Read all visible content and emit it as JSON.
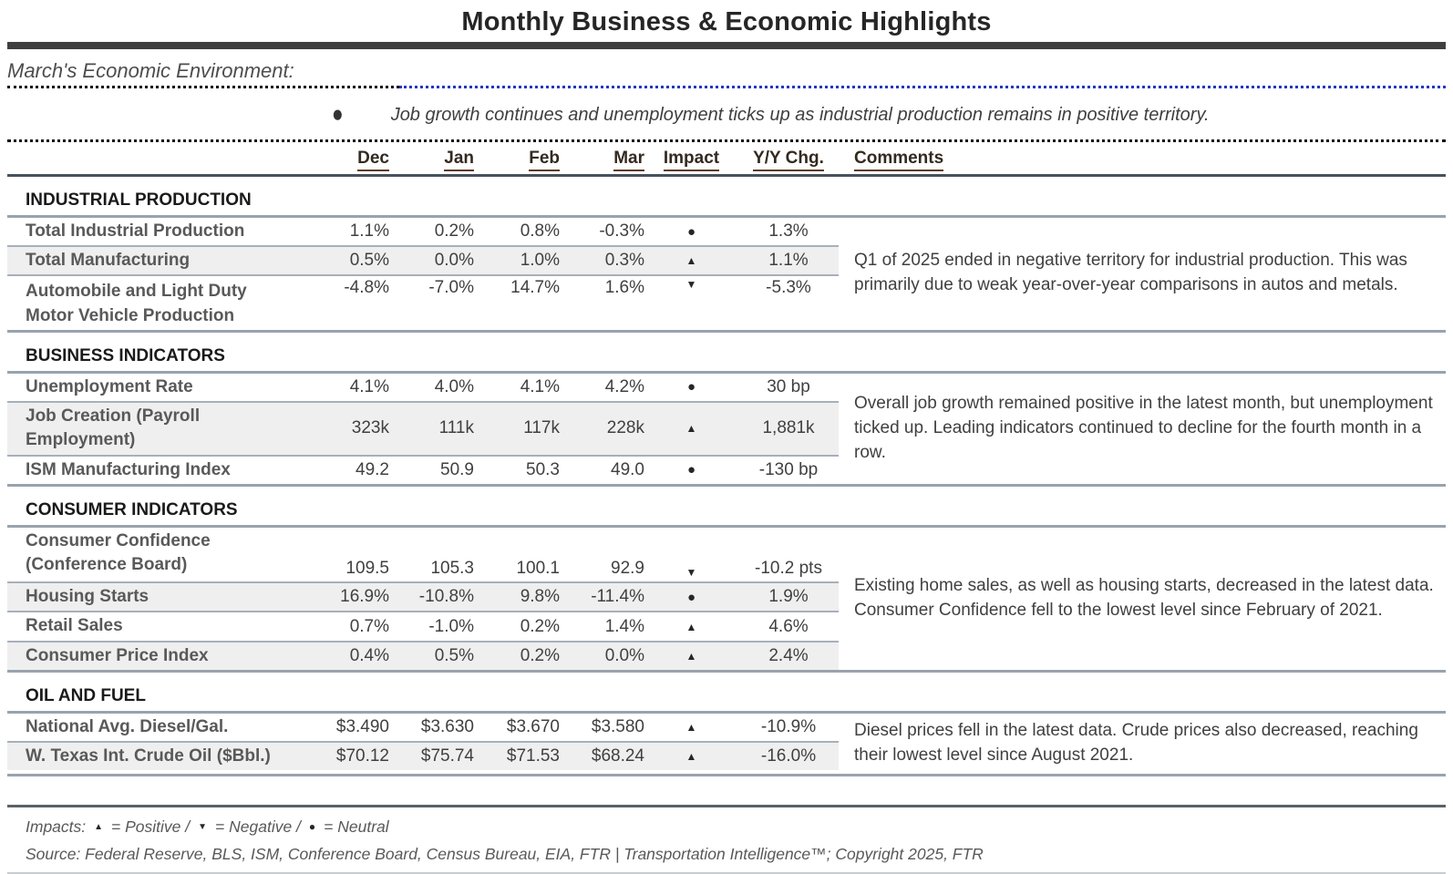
{
  "title": "Monthly Business & Economic Highlights",
  "intro": {
    "heading": "March's Economic Environment:",
    "bullet_symbol": "●",
    "bullet_text": "Job growth continues and unemployment ticks up as industrial production remains in positive territory."
  },
  "impact_symbols": {
    "positive": "▲",
    "negative": "▼",
    "neutral": "●"
  },
  "colors": {
    "title_rule": "#3f3f3f",
    "header_underline": "#5f3a1e",
    "dotted_blue": "#2236c4",
    "row_stripe": "#efefef",
    "row_border": "#a7b0ba",
    "footer_rule": "#5a6268"
  },
  "table": {
    "columns": [
      "Dec",
      "Jan",
      "Feb",
      "Mar",
      "Impact",
      "Y/Y Chg.",
      "Comments"
    ],
    "sections": [
      {
        "name": "INDUSTRIAL PRODUCTION",
        "comment": "Q1 of 2025 ended in negative territory for industrial production. This was primarily due to weak year-over-year comparisons in autos and metals.",
        "rows": [
          {
            "label": "Total Industrial Production",
            "dec": "1.1%",
            "jan": "0.2%",
            "feb": "0.8%",
            "mar": "-0.3%",
            "impact": "neutral",
            "yy": "1.3%"
          },
          {
            "label": "Total Manufacturing",
            "dec": "0.5%",
            "jan": "0.0%",
            "feb": "1.0%",
            "mar": "0.3%",
            "impact": "positive",
            "yy": "1.1%"
          },
          {
            "label": "Automobile and Light Duty",
            "label2": "Motor Vehicle Production",
            "dec": "-4.8%",
            "jan": "-7.0%",
            "feb": "14.7%",
            "mar": "1.6%",
            "impact": "negative",
            "yy": "-5.3%"
          }
        ]
      },
      {
        "name": "BUSINESS INDICATORS",
        "comment": "Overall job growth remained positive in the latest month, but unemployment ticked up. Leading indicators continued to decline for the fourth month in a row.",
        "rows": [
          {
            "label": "Unemployment Rate",
            "dec": "4.1%",
            "jan": "4.0%",
            "feb": "4.1%",
            "mar": "4.2%",
            "impact": "neutral",
            "yy": "30 bp"
          },
          {
            "label": "Job Creation (Payroll",
            "label2": "Employment)",
            "dec": "323k",
            "jan": "111k",
            "feb": "117k",
            "mar": "228k",
            "impact": "positive",
            "yy": "1,881k"
          },
          {
            "label": "ISM Manufacturing Index",
            "dec": "49.2",
            "jan": "50.9",
            "feb": "50.3",
            "mar": "49.0",
            "impact": "neutral",
            "yy": "-130 bp"
          }
        ]
      },
      {
        "name": "CONSUMER INDICATORS",
        "comment": "Existing home sales, as well as housing starts, decreased in the latest data. Consumer Confidence fell to the lowest level since February of 2021.",
        "rows": [
          {
            "label": "Consumer Confidence",
            "label2": "(Conference Board)",
            "dec": "109.5",
            "jan": "105.3",
            "feb": "100.1",
            "mar": "92.9",
            "impact": "negative",
            "yy": "-10.2 pts"
          },
          {
            "label": "Housing Starts",
            "dec": "16.9%",
            "jan": "-10.8%",
            "feb": "9.8%",
            "mar": "-11.4%",
            "impact": "neutral",
            "yy": "1.9%"
          },
          {
            "label": "Retail Sales",
            "dec": "0.7%",
            "jan": "-1.0%",
            "feb": "0.2%",
            "mar": "1.4%",
            "impact": "positive",
            "yy": "4.6%"
          },
          {
            "label": "Consumer Price Index",
            "dec": "0.4%",
            "jan": "0.5%",
            "feb": "0.2%",
            "mar": "0.0%",
            "impact": "positive",
            "yy": "2.4%"
          }
        ]
      },
      {
        "name": "OIL AND FUEL",
        "comment": "Diesel prices fell in the latest data. Crude prices also decreased, reaching their lowest level since August 2021.",
        "rows": [
          {
            "label": "National Avg. Diesel/Gal.",
            "dec": "$3.490",
            "jan": "$3.630",
            "feb": "$3.670",
            "mar": "$3.580",
            "impact": "positive",
            "yy": "-10.9%"
          },
          {
            "label": "W. Texas Int. Crude Oil ($Bbl.)",
            "dec": "$70.12",
            "jan": "$75.74",
            "feb": "$71.53",
            "mar": "$68.24",
            "impact": "positive",
            "yy": "-16.0%"
          }
        ]
      }
    ]
  },
  "footer": {
    "impacts_label": "Impacts:",
    "legend": [
      {
        "impact": "positive",
        "text": "= Positive /"
      },
      {
        "impact": "negative",
        "text": "= Negative /"
      },
      {
        "impact": "neutral",
        "text": "= Neutral"
      }
    ],
    "source": "Source: Federal Reserve, BLS, ISM, Conference Board, Census Bureau, EIA, FTR | Transportation Intelligence™; Copyright 2025, FTR"
  }
}
